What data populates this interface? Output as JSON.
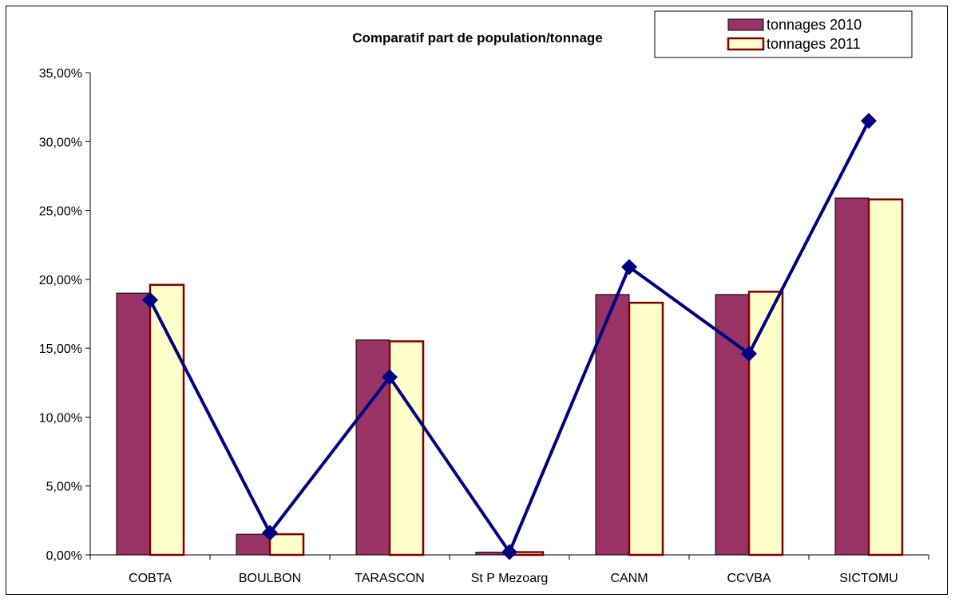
{
  "chart_data": {
    "type": "bar",
    "title": "Comparatif part de population/tonnage",
    "xlabel": "",
    "ylabel": "",
    "categories": [
      "COBTA",
      "BOULBON",
      "TARASCON",
      "St P Mezoarg",
      "CANM",
      "CCVBA",
      "SICTOMU"
    ],
    "ylim": [
      0,
      35
    ],
    "yticks": [
      0,
      5,
      10,
      15,
      20,
      25,
      30,
      35
    ],
    "ytick_labels": [
      "0,00%",
      "5,00%",
      "10,00%",
      "15,00%",
      "20,00%",
      "25,00%",
      "30,00%",
      "35,00%"
    ],
    "grid": false,
    "legend_position": "top-right",
    "series": [
      {
        "name": "tonnages 2010",
        "kind": "bar",
        "color": "#993366",
        "values": [
          19.0,
          1.5,
          15.6,
          0.2,
          18.9,
          18.9,
          25.9
        ]
      },
      {
        "name": "tonnages 2011",
        "kind": "bar",
        "color": "#FFFFCC",
        "stroke": "#800000",
        "values": [
          19.6,
          1.5,
          15.5,
          0.2,
          18.3,
          19.1,
          25.8
        ]
      },
      {
        "kind": "line",
        "color": "#000080",
        "marker": "diamond",
        "values": [
          18.5,
          1.6,
          12.9,
          0.2,
          20.9,
          14.6,
          31.5
        ]
      }
    ]
  }
}
